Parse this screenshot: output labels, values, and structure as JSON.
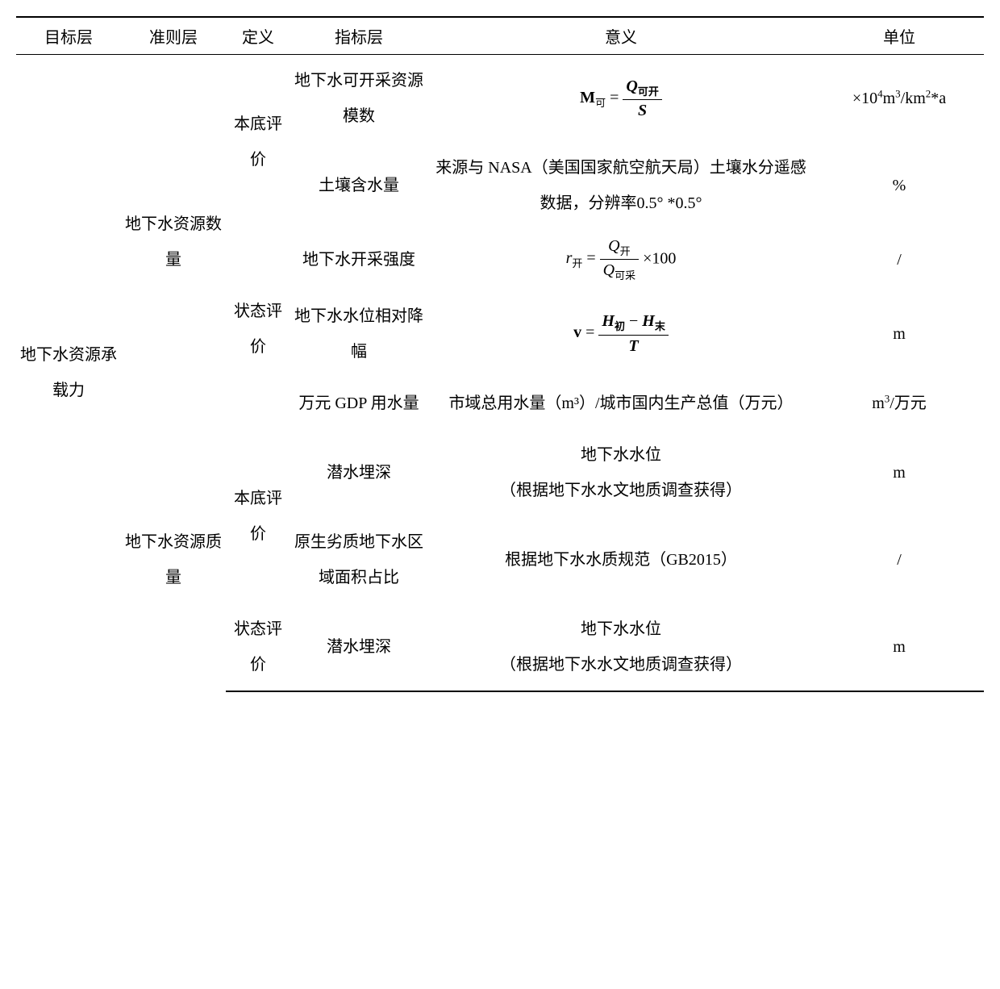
{
  "headers": {
    "target": "目标层",
    "criteria": "准则层",
    "def": "定义",
    "indicator": "指标层",
    "meaning": "意义",
    "unit": "单位"
  },
  "target": "地下水资源承载力",
  "criteria1": "地下水资源数量",
  "criteria2": "地下水资源质量",
  "def_bd": "本底评价",
  "def_zt": "状态评价",
  "rows": {
    "r1": {
      "indicator": "地下水可开采资源模数",
      "unit": "×10⁴m³/km²*a"
    },
    "r2": {
      "indicator": "土壤含水量",
      "meaning": "来源与 NASA（美国国家航空航天局）土壤水分遥感数据，分辨率0.5° *0.5°",
      "unit": "%"
    },
    "r3": {
      "indicator": "地下水开采强度",
      "unit": "/"
    },
    "r4": {
      "indicator": "地下水水位相对降幅",
      "unit": "m"
    },
    "r5": {
      "indicator": "万元 GDP 用水量",
      "meaning": "市域总用水量（m³）/城市国内生产总值（万元）",
      "unit": "m³/万元"
    },
    "r6": {
      "indicator": "潜水埋深",
      "meaning": "地下水水位<br>（根据地下水水文地质调查获得）",
      "unit": "m"
    },
    "r7": {
      "indicator": "原生劣质地下水区域面积占比",
      "meaning": "根据地下水水质规范（GB2015）",
      "unit": "/"
    },
    "r8": {
      "indicator": "潜水埋深",
      "meaning": "地下水水位<br>（根据地下水水文地质调查获得）",
      "unit": "m"
    }
  },
  "formulas": {
    "f1": {
      "lhs": "M",
      "lhs_sub": "可",
      "num": "Q",
      "num_sub": "可开",
      "den": "S"
    },
    "f3": {
      "lhs": "r",
      "lhs_sub": "开",
      "num": "Q",
      "num_sub": "开",
      "den": "Q",
      "den_sub": "可采",
      "tail": "×100"
    },
    "f4": {
      "lhs": "v",
      "num1": "H",
      "num1_sub": "初",
      "num2": "H",
      "num2_sub": "末",
      "den": "T"
    }
  }
}
